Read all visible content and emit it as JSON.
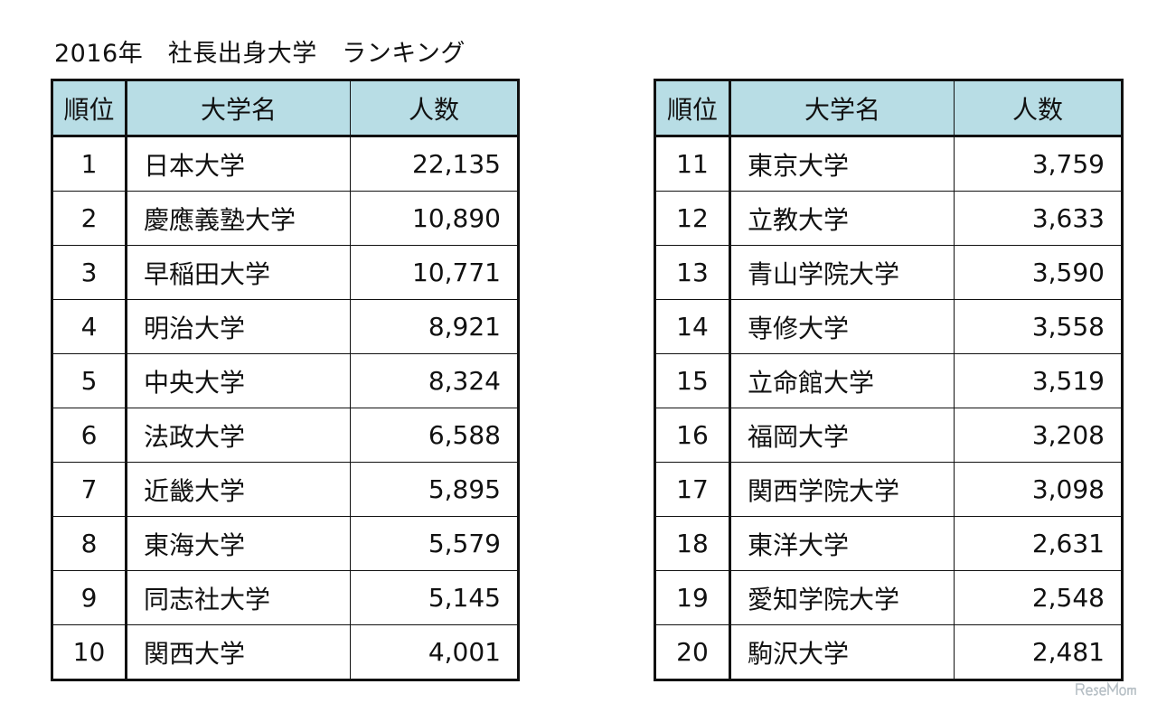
{
  "title": "2016年　社長出身大学　ランキング",
  "headers": {
    "rank": "順位",
    "university": "大学名",
    "count": "人数"
  },
  "left_table": [
    {
      "rank": "1",
      "university": "日本大学",
      "count": "22,135"
    },
    {
      "rank": "2",
      "university": "慶應義塾大学",
      "count": "10,890"
    },
    {
      "rank": "3",
      "university": "早稲田大学",
      "count": "10,771"
    },
    {
      "rank": "4",
      "university": "明治大学",
      "count": "8,921"
    },
    {
      "rank": "5",
      "university": "中央大学",
      "count": "8,324"
    },
    {
      "rank": "6",
      "university": "法政大学",
      "count": "6,588"
    },
    {
      "rank": "7",
      "university": "近畿大学",
      "count": "5,895"
    },
    {
      "rank": "8",
      "university": "東海大学",
      "count": "5,579"
    },
    {
      "rank": "9",
      "university": "同志社大学",
      "count": "5,145"
    },
    {
      "rank": "10",
      "university": "関西大学",
      "count": "4,001"
    }
  ],
  "right_table": [
    {
      "rank": "11",
      "university": "東京大学",
      "count": "3,759"
    },
    {
      "rank": "12",
      "university": "立教大学",
      "count": "3,633"
    },
    {
      "rank": "13",
      "university": "青山学院大学",
      "count": "3,590"
    },
    {
      "rank": "14",
      "university": "専修大学",
      "count": "3,558"
    },
    {
      "rank": "15",
      "university": "立命館大学",
      "count": "3,519"
    },
    {
      "rank": "16",
      "university": "福岡大学",
      "count": "3,208"
    },
    {
      "rank": "17",
      "university": "関西学院大学",
      "count": "3,098"
    },
    {
      "rank": "18",
      "university": "東洋大学",
      "count": "2,631"
    },
    {
      "rank": "19",
      "university": "愛知学院大学",
      "count": "2,548"
    },
    {
      "rank": "20",
      "university": "駒沢大学",
      "count": "2,481"
    }
  ],
  "watermark": {
    "text": "ResеMom",
    "icon": "resemom-logo-icon"
  },
  "colors": {
    "header_bg": "#b8dde5",
    "border": "#111111",
    "text": "#111111"
  }
}
